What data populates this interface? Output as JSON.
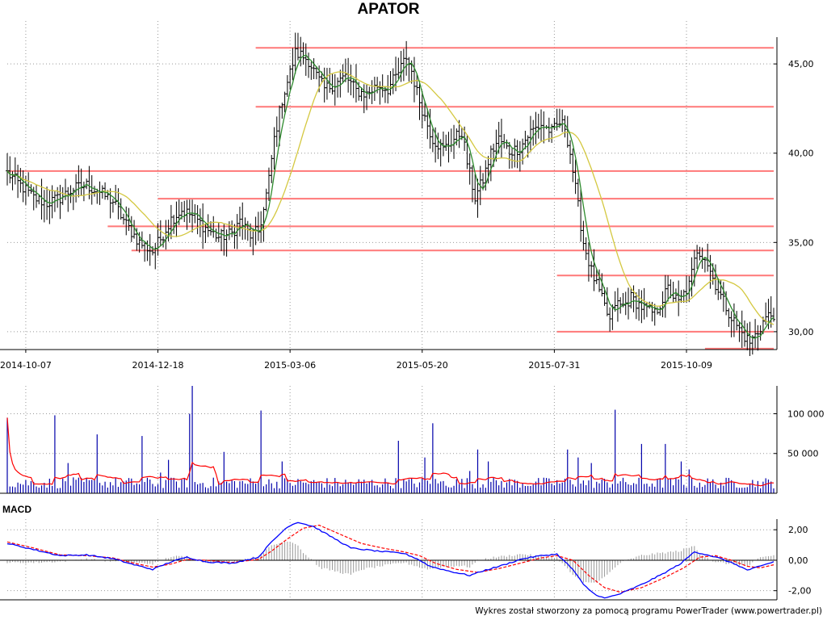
{
  "title": "APATOR",
  "footer": "Wykres został stworzony za pomocą programu PowerTrader (www.powertrader.pl)",
  "macd_label": "MACD",
  "colors": {
    "price_bars": "#000000",
    "ma_short": "#2e8b2e",
    "ma_long": "#d4c840",
    "resistance_lines": "#ff7878",
    "volume_bars": "#0000aa",
    "volume_ma": "#ff0000",
    "macd_line": "#0000ff",
    "macd_signal": "#ff0000",
    "macd_histogram": "#999999",
    "grid": "#999999"
  },
  "chart_data": [
    {
      "type": "ohlc",
      "panel": "price",
      "title": "APATOR",
      "ylim": [
        29,
        46.5
      ],
      "y_ticks": [
        "30,00",
        "35,00",
        "40,00",
        "45,00"
      ],
      "y_tick_values": [
        30,
        35,
        40,
        45
      ],
      "x_tick_labels": [
        "2014-10-07",
        "2014-12-18",
        "2015-03-06",
        "2015-05-20",
        "2015-07-31",
        "2015-10-09"
      ],
      "grid": true,
      "x_range": [
        0,
        290
      ],
      "x_tick_index": [
        7,
        57,
        107,
        157,
        207,
        257
      ],
      "anchors": [
        [
          0,
          38.9
        ],
        [
          5,
          38.2
        ],
        [
          10,
          37.5
        ],
        [
          15,
          37.2
        ],
        [
          20,
          37.5
        ],
        [
          25,
          38
        ],
        [
          30,
          38.2
        ],
        [
          35,
          37.8
        ],
        [
          40,
          37.3
        ],
        [
          45,
          36
        ],
        [
          50,
          35
        ],
        [
          55,
          34.5
        ],
        [
          58,
          35.2
        ],
        [
          62,
          36.3
        ],
        [
          66,
          36.8
        ],
        [
          70,
          36.5
        ],
        [
          75,
          35.8
        ],
        [
          80,
          35.3
        ],
        [
          85,
          35.5
        ],
        [
          88,
          36.2
        ],
        [
          92,
          35.4
        ],
        [
          95,
          35.6
        ],
        [
          97,
          36.8
        ],
        [
          99,
          38.5
        ],
        [
          101,
          40.8
        ],
        [
          104,
          43
        ],
        [
          107,
          44.5
        ],
        [
          109,
          45.6
        ],
        [
          111,
          45.5
        ],
        [
          114,
          45.2
        ],
        [
          117,
          44.3
        ],
        [
          120,
          43.6
        ],
        [
          124,
          43.9
        ],
        [
          128,
          44.3
        ],
        [
          132,
          43.5
        ],
        [
          136,
          43.3
        ],
        [
          140,
          43.8
        ],
        [
          144,
          43.6
        ],
        [
          148,
          44.5
        ],
        [
          151,
          45.4
        ],
        [
          153,
          44.6
        ],
        [
          155,
          43.4
        ],
        [
          158,
          42
        ],
        [
          161,
          40.8
        ],
        [
          165,
          40.2
        ],
        [
          169,
          40.8
        ],
        [
          172,
          41.2
        ],
        [
          174,
          39.5
        ],
        [
          177,
          37.5
        ],
        [
          180,
          38.5
        ],
        [
          183,
          40
        ],
        [
          186,
          40.8
        ],
        [
          190,
          40.1
        ],
        [
          194,
          40.3
        ],
        [
          198,
          41.2
        ],
        [
          202,
          41.6
        ],
        [
          206,
          41.2
        ],
        [
          209,
          41.7
        ],
        [
          211,
          41.5
        ],
        [
          213,
          40
        ],
        [
          216,
          37
        ],
        [
          218,
          35
        ],
        [
          221,
          33.4
        ],
        [
          225,
          31.8
        ],
        [
          228,
          30.6
        ],
        [
          230,
          31.6
        ],
        [
          233,
          31.4
        ],
        [
          236,
          31.9
        ],
        [
          240,
          31.4
        ],
        [
          245,
          31
        ],
        [
          250,
          32.4
        ],
        [
          254,
          31.6
        ],
        [
          258,
          32.6
        ],
        [
          261,
          34.6
        ],
        [
          264,
          34.2
        ],
        [
          267,
          33
        ],
        [
          270,
          32
        ],
        [
          274,
          30.8
        ],
        [
          278,
          29.9
        ],
        [
          281,
          29.4
        ],
        [
          284,
          30
        ],
        [
          287,
          30.8
        ],
        [
          290,
          31
        ]
      ],
      "moving_averages": [
        {
          "name": "short",
          "period": 5
        },
        {
          "name": "long",
          "period": 20
        }
      ],
      "horizontal_lines": [
        {
          "y": 45.9,
          "from": 94,
          "to": 290
        },
        {
          "y": 42.6,
          "from": 94,
          "to": 290
        },
        {
          "y": 39.0,
          "from": 0,
          "to": 290
        },
        {
          "y": 37.45,
          "from": 57,
          "to": 290
        },
        {
          "y": 35.9,
          "from": 38,
          "to": 290
        },
        {
          "y": 34.55,
          "from": 47,
          "to": 290
        },
        {
          "y": 33.15,
          "from": 208,
          "to": 290
        },
        {
          "y": 30.0,
          "from": 208,
          "to": 290
        },
        {
          "y": 29.05,
          "from": 264,
          "to": 290
        }
      ]
    },
    {
      "type": "bar",
      "panel": "volume",
      "ylim": [
        0,
        135000
      ],
      "y_ticks": [
        "50 000",
        "100 000"
      ],
      "y_tick_values": [
        50000,
        100000
      ],
      "spikes": [
        [
          0,
          95000
        ],
        [
          18,
          98000
        ],
        [
          23,
          38000
        ],
        [
          34,
          74000
        ],
        [
          51,
          72000
        ],
        [
          58,
          26000
        ],
        [
          61,
          42000
        ],
        [
          69,
          100000
        ],
        [
          70,
          140000
        ],
        [
          82,
          52000
        ],
        [
          96,
          104000
        ],
        [
          104,
          40000
        ],
        [
          148,
          66000
        ],
        [
          158,
          45000
        ],
        [
          161,
          88000
        ],
        [
          175,
          28000
        ],
        [
          178,
          55000
        ],
        [
          182,
          40000
        ],
        [
          212,
          55000
        ],
        [
          216,
          45000
        ],
        [
          221,
          38000
        ],
        [
          230,
          105000
        ],
        [
          240,
          62000
        ],
        [
          249,
          62000
        ],
        [
          255,
          40000
        ],
        [
          258,
          30000
        ]
      ],
      "baseline": 6000,
      "moving_average_color": "#ff0000"
    },
    {
      "type": "line",
      "panel": "macd",
      "title": "MACD",
      "ylim": [
        -2.6,
        2.7
      ],
      "y_ticks": [
        "-2,00",
        "0,00",
        "2,00"
      ],
      "y_tick_values": [
        -2,
        0,
        2
      ],
      "series": [
        {
          "color": "#0000ff",
          "points": [
            [
              0,
              1.1
            ],
            [
              10,
              0.7
            ],
            [
              20,
              0.3
            ],
            [
              30,
              0.35
            ],
            [
              40,
              0.1
            ],
            [
              48,
              -0.3
            ],
            [
              55,
              -0.6
            ],
            [
              62,
              -0.1
            ],
            [
              68,
              0.2
            ],
            [
              75,
              -0.1
            ],
            [
              85,
              -0.2
            ],
            [
              95,
              0.2
            ],
            [
              100,
              1.2
            ],
            [
              106,
              2.2
            ],
            [
              110,
              2.5
            ],
            [
              116,
              2.2
            ],
            [
              124,
              1.4
            ],
            [
              130,
              0.8
            ],
            [
              140,
              0.6
            ],
            [
              150,
              0.45
            ],
            [
              155,
              0.1
            ],
            [
              160,
              -0.4
            ],
            [
              168,
              -0.75
            ],
            [
              175,
              -1.0
            ],
            [
              180,
              -0.7
            ],
            [
              188,
              -0.3
            ],
            [
              195,
              0.1
            ],
            [
              202,
              0.3
            ],
            [
              208,
              0.4
            ],
            [
              214,
              -0.6
            ],
            [
              218,
              -1.6
            ],
            [
              222,
              -2.2
            ],
            [
              226,
              -2.5
            ],
            [
              232,
              -2.2
            ],
            [
              240,
              -1.6
            ],
            [
              248,
              -0.9
            ],
            [
              255,
              -0.2
            ],
            [
              260,
              0.55
            ],
            [
              265,
              0.35
            ],
            [
              270,
              0.1
            ],
            [
              276,
              -0.3
            ],
            [
              280,
              -0.65
            ],
            [
              285,
              -0.4
            ],
            [
              290,
              -0.1
            ]
          ]
        },
        {
          "color": "#ff0000",
          "dashed": true,
          "points": [
            [
              0,
              1.2
            ],
            [
              10,
              0.8
            ],
            [
              20,
              0.35
            ],
            [
              30,
              0.3
            ],
            [
              40,
              0.15
            ],
            [
              48,
              -0.2
            ],
            [
              55,
              -0.45
            ],
            [
              62,
              -0.25
            ],
            [
              68,
              0.05
            ],
            [
              75,
              0.0
            ],
            [
              85,
              -0.15
            ],
            [
              95,
              0.05
            ],
            [
              100,
              0.6
            ],
            [
              106,
              1.4
            ],
            [
              112,
              2.1
            ],
            [
              118,
              2.3
            ],
            [
              126,
              1.7
            ],
            [
              134,
              1.1
            ],
            [
              142,
              0.8
            ],
            [
              150,
              0.55
            ],
            [
              156,
              0.3
            ],
            [
              162,
              -0.2
            ],
            [
              170,
              -0.6
            ],
            [
              178,
              -0.8
            ],
            [
              186,
              -0.55
            ],
            [
              194,
              -0.2
            ],
            [
              202,
              0.15
            ],
            [
              208,
              0.3
            ],
            [
              214,
              0.0
            ],
            [
              220,
              -1.0
            ],
            [
              226,
              -1.8
            ],
            [
              232,
              -2.1
            ],
            [
              240,
              -1.8
            ],
            [
              248,
              -1.2
            ],
            [
              256,
              -0.5
            ],
            [
              262,
              0.2
            ],
            [
              268,
              0.3
            ],
            [
              274,
              0.0
            ],
            [
              280,
              -0.4
            ],
            [
              285,
              -0.5
            ],
            [
              290,
              -0.3
            ]
          ]
        }
      ]
    }
  ]
}
